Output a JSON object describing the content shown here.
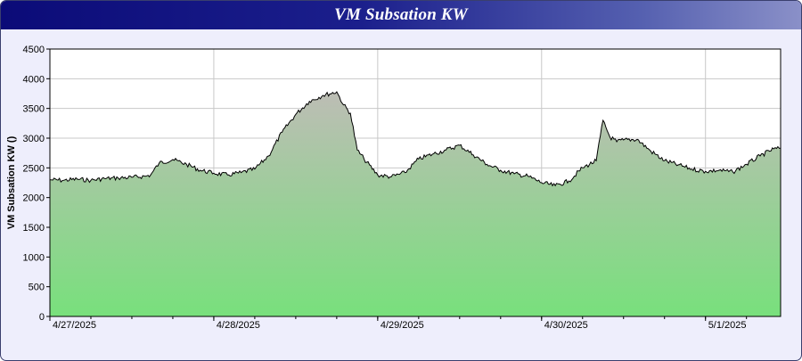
{
  "window": {
    "title": "VM Subsation KW"
  },
  "colors": {
    "title_bar": "#0b0b78",
    "panel_bg": "#eeeefc",
    "area_top": "#bdbdb5",
    "area_bottom": "#78e07c",
    "line": "#000000",
    "grid": "#c8c8c8"
  },
  "chart_data": {
    "type": "area",
    "title": "VM Subsation KW",
    "ylabel": "VM Subsation KW ()",
    "xlabel": "",
    "ylim": [
      0,
      4500
    ],
    "yticks": [
      0,
      500,
      1000,
      1500,
      2000,
      2500,
      3000,
      3500,
      4000,
      4500
    ],
    "x_range": [
      "4/27/2025 00:00",
      "5/1/2025 11:00"
    ],
    "x_tick_labels": [
      "4/27/2025",
      "4/28/2025",
      "4/29/2025",
      "4/30/2025",
      "5/1/2025"
    ],
    "grid": true,
    "legend": "none",
    "series": [
      {
        "x": [
          "4/27/2025 00:00",
          "4/27/2025 02:00",
          "4/27/2025 04:00",
          "4/27/2025 06:00",
          "4/27/2025 08:00",
          "4/27/2025 10:00",
          "4/27/2025 12:00",
          "4/27/2025 14:00",
          "4/27/2025 14:45",
          "4/27/2025 16:00",
          "4/27/2025 18:00",
          "4/27/2025 20:00",
          "4/27/2025 22:00",
          "4/28/2025 00:00",
          "4/28/2025 02:00",
          "4/28/2025 04:00",
          "4/28/2025 06:00",
          "4/28/2025 08:00",
          "4/28/2025 10:00",
          "4/28/2025 12:00",
          "4/28/2025 14:00",
          "4/28/2025 16:00",
          "4/28/2025 18:00",
          "4/28/2025 19:00",
          "4/28/2025 20:00",
          "4/28/2025 21:00",
          "4/28/2025 22:00",
          "4/29/2025 00:00",
          "4/29/2025 02:00",
          "4/29/2025 04:00",
          "4/29/2025 06:00",
          "4/29/2025 08:00",
          "4/29/2025 10:00",
          "4/29/2025 12:00",
          "4/29/2025 14:00",
          "4/29/2025 16:00",
          "4/29/2025 18:00",
          "4/29/2025 20:00",
          "4/29/2025 22:00",
          "4/30/2025 00:00",
          "4/30/2025 02:00",
          "4/30/2025 04:00",
          "4/30/2025 06:00",
          "4/30/2025 08:00",
          "4/30/2025 09:00",
          "4/30/2025 10:00",
          "4/30/2025 11:00",
          "4/30/2025 12:00",
          "4/30/2025 14:00",
          "4/30/2025 16:00",
          "4/30/2025 18:00",
          "4/30/2025 20:00",
          "4/30/2025 22:00",
          "5/1/2025 00:00",
          "5/1/2025 02:00",
          "5/1/2025 04:00",
          "5/1/2025 06:00",
          "5/1/2025 08:00",
          "5/1/2025 10:00",
          "5/1/2025 11:00"
        ],
        "y": [
          2300,
          2290,
          2310,
          2290,
          2320,
          2330,
          2340,
          2360,
          2380,
          2580,
          2640,
          2560,
          2460,
          2410,
          2380,
          2420,
          2480,
          2700,
          3100,
          3400,
          3620,
          3720,
          3780,
          3560,
          3420,
          2800,
          2650,
          2380,
          2350,
          2420,
          2650,
          2730,
          2800,
          2880,
          2720,
          2560,
          2460,
          2400,
          2360,
          2250,
          2200,
          2280,
          2500,
          2620,
          3300,
          3020,
          2940,
          2970,
          2980,
          2780,
          2620,
          2550,
          2480,
          2440,
          2460,
          2430,
          2560,
          2700,
          2820,
          2830
        ]
      }
    ]
  }
}
